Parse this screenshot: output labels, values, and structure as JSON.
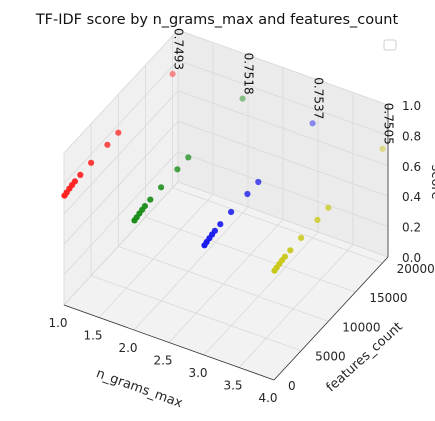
{
  "chart_data": {
    "type": "scatter",
    "projection": "3d",
    "title": "TF-IDF score by n_grams_max and features_count",
    "xlabel": "n_grams_max",
    "ylabel": "features_count",
    "zlabel": "score",
    "xlim": [
      1.0,
      4.0
    ],
    "ylim": [
      0,
      21000
    ],
    "zlim": [
      0.0,
      1.0
    ],
    "xticks": [
      "1.0",
      "1.5",
      "2.0",
      "2.5",
      "3.0",
      "3.5",
      "4.0"
    ],
    "yticks": [
      "0",
      "5000",
      "10000",
      "15000",
      "20000"
    ],
    "zticks": [
      "0.0",
      "0.2",
      "0.4",
      "0.6",
      "0.8",
      "1.0"
    ],
    "grid": true,
    "legend": "upper right (empty)",
    "series": [
      {
        "color": "#ff2020",
        "x": [
          1,
          1,
          1,
          1,
          1,
          1,
          1,
          1,
          1,
          1
        ],
        "y": [
          100,
          500,
          1000,
          1500,
          2000,
          3000,
          5000,
          8000,
          10000,
          20000
        ],
        "z": [
          0.716,
          0.721,
          0.727,
          0.732,
          0.736,
          0.74,
          0.743,
          0.746,
          0.748,
          0.7493
        ]
      },
      {
        "color": "#1a8c1a",
        "x": [
          2,
          2,
          2,
          2,
          2,
          2,
          2,
          2,
          2,
          2
        ],
        "y": [
          100,
          500,
          1000,
          1500,
          2000,
          3000,
          5000,
          8000,
          10000,
          20000
        ],
        "z": [
          0.717,
          0.722,
          0.728,
          0.733,
          0.738,
          0.742,
          0.746,
          0.749,
          0.75,
          0.7518
        ]
      },
      {
        "color": "#1a1aee",
        "x": [
          3,
          3,
          3,
          3,
          3,
          3,
          3,
          3,
          3,
          3
        ],
        "y": [
          100,
          500,
          1000,
          1500,
          2000,
          3000,
          5000,
          8000,
          10000,
          20000
        ],
        "z": [
          0.718,
          0.724,
          0.73,
          0.735,
          0.74,
          0.745,
          0.748,
          0.751,
          0.7525,
          0.7537
        ]
      },
      {
        "color": "#c8c81a",
        "x": [
          4,
          4,
          4,
          4,
          4,
          4,
          4,
          4,
          4,
          4
        ],
        "y": [
          100,
          500,
          1000,
          1500,
          2000,
          3000,
          5000,
          8000,
          10000,
          20000
        ],
        "z": [
          0.715,
          0.72,
          0.725,
          0.73,
          0.734,
          0.738,
          0.742,
          0.745,
          0.748,
          0.7505
        ]
      }
    ],
    "annotations": [
      {
        "text": "0.7493",
        "x": 1,
        "y": 20000,
        "z": 0.7493
      },
      {
        "text": "0.7518",
        "x": 2,
        "y": 20000,
        "z": 0.7518
      },
      {
        "text": "0.7537",
        "x": 3,
        "y": 20000,
        "z": 0.7537
      },
      {
        "text": "0.7505",
        "x": 4,
        "y": 20000,
        "z": 0.7505
      }
    ]
  }
}
